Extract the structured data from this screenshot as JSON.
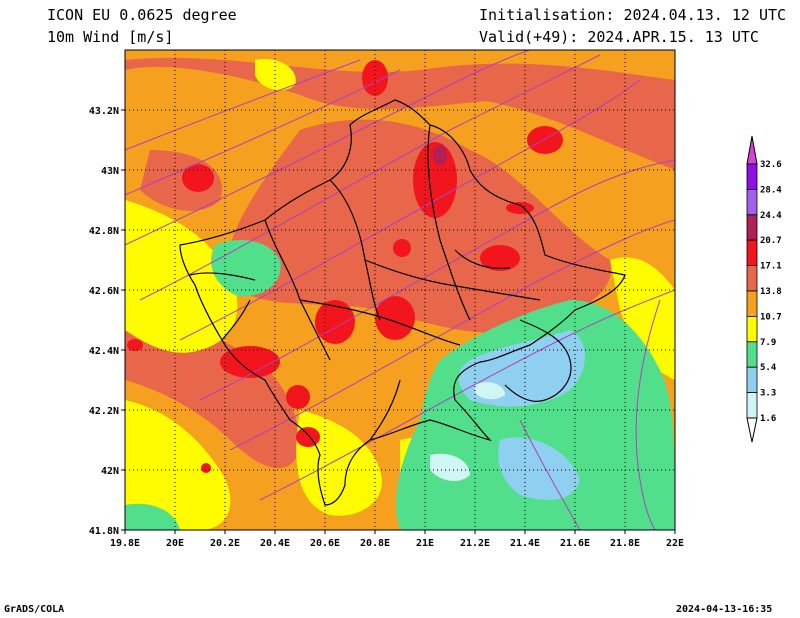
{
  "header": {
    "model": "ICON EU 0.0625 degree",
    "variable": "10m Wind [m/s]",
    "init": "Initialisation: 2024.04.13. 12 UTC",
    "valid": "Valid(+49): 2024.APR.15. 13 UTC"
  },
  "footer": {
    "left": "GrADS/COLA",
    "right": "2024-04-13-16:35"
  },
  "map": {
    "lon_labels": [
      "19.8E",
      "20E",
      "20.2E",
      "20.4E",
      "20.6E",
      "20.8E",
      "21E",
      "21.2E",
      "21.4E",
      "21.6E",
      "21.8E",
      "22E"
    ],
    "lat_labels": [
      "43.2N",
      "43N",
      "42.8N",
      "42.6N",
      "42.4N",
      "42.2N",
      "42N",
      "41.8N"
    ],
    "background_color": "#f5a01e"
  },
  "colorbar": {
    "labels": [
      "32.6",
      "28.4",
      "24.4",
      "20.7",
      "17.1",
      "13.8",
      "10.7",
      "7.9",
      "5.4",
      "3.3",
      "1.6"
    ],
    "colors": [
      "#8f0fe6",
      "#a15ff0",
      "#b01f55",
      "#f2151d",
      "#e8664a",
      "#f5a01e",
      "#fffc00",
      "#52df8b",
      "#8fd0f0",
      "#d0f5f5"
    ],
    "top_arrow_color": "#d940d9"
  }
}
